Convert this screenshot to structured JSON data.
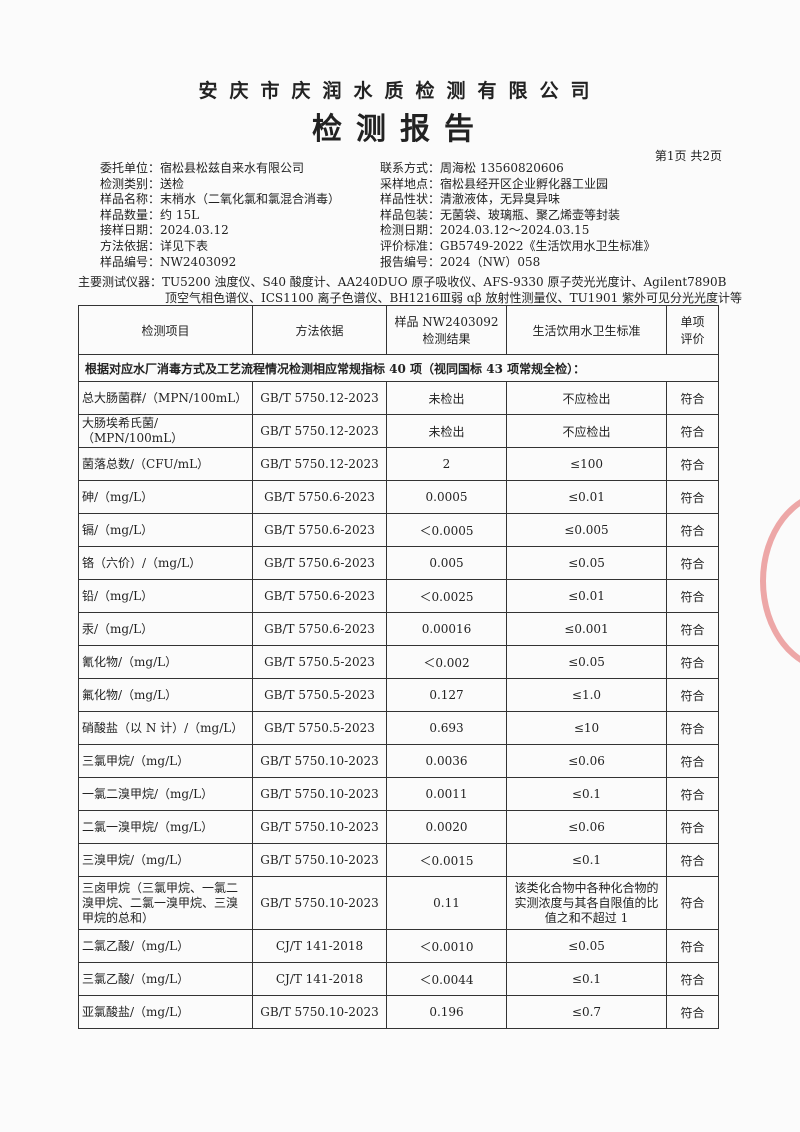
{
  "header": {
    "company": "安庆市庆润水质检测有限公司",
    "title": "检测报告",
    "page": "第1页 共2页"
  },
  "info": {
    "left": [
      "委托单位：宿松县松兹自来水有限公司",
      "检测类别：送检",
      "样品名称：末梢水（二氧化氯和氯混合消毒）",
      "样品数量：约 15L",
      "接样日期：2024.03.12",
      "方法依据：详见下表",
      "样品编号：NW2403092"
    ],
    "right": [
      "联系方式：周海松 13560820606",
      "采样地点：宿松县经开区企业孵化器工业园",
      "样品性状：清澈液体，无异臭异味",
      "样品包装：无菌袋、玻璃瓶、聚乙烯壶等封装",
      "检测日期：2024.03.12～2024.03.15",
      "评价标准：GB5749-2022《生活饮用水卫生标准》",
      "报告编号：2024（NW）058"
    ]
  },
  "instruments": [
    "主要测试仪器：TU5200 浊度仪、S40 酸度计、AA240DUO 原子吸收仪、AFS-9330 原子荧光光度计、Agilent7890B",
    "顶空气相色谱仪、ICS1100 离子色谱仪、BH1216Ⅲ弱 αβ 放射性测量仪、TU1901 紫外可见分光光度计等"
  ],
  "table": {
    "headers": [
      [
        "检测项目"
      ],
      [
        "方法依据"
      ],
      [
        "样品 NW2403092",
        "检测结果"
      ],
      [
        "生活饮用水卫生标准"
      ],
      [
        "单项",
        "评价"
      ]
    ],
    "section": "根据对应水厂消毒方式及工艺流程情况检测相应常规指标 40 项（视同国标 43 项常规全检）：",
    "rows": [
      [
        "总大肠菌群/（MPN/100mL）",
        "GB/T 5750.12-2023",
        "未检出",
        "不应检出",
        "符合"
      ],
      [
        "大肠埃希氏菌/（MPN/100mL）",
        "GB/T 5750.12-2023",
        "未检出",
        "不应检出",
        "符合"
      ],
      [
        "菌落总数/（CFU/mL）",
        "GB/T 5750.12-2023",
        "2",
        "≤100",
        "符合"
      ],
      [
        "砷/（mg/L）",
        "GB/T 5750.6-2023",
        "0.0005",
        "≤0.01",
        "符合"
      ],
      [
        "镉/（mg/L）",
        "GB/T 5750.6-2023",
        "＜0.0005",
        "≤0.005",
        "符合"
      ],
      [
        "铬（六价）/（mg/L）",
        "GB/T 5750.6-2023",
        "0.005",
        "≤0.05",
        "符合"
      ],
      [
        "铅/（mg/L）",
        "GB/T 5750.6-2023",
        "＜0.0025",
        "≤0.01",
        "符合"
      ],
      [
        "汞/（mg/L）",
        "GB/T 5750.6-2023",
        "0.00016",
        "≤0.001",
        "符合"
      ],
      [
        "氰化物/（mg/L）",
        "GB/T 5750.5-2023",
        "＜0.002",
        "≤0.05",
        "符合"
      ],
      [
        "氟化物/（mg/L）",
        "GB/T 5750.5-2023",
        "0.127",
        "≤1.0",
        "符合"
      ],
      [
        "硝酸盐（以 N 计）/（mg/L）",
        "GB/T 5750.5-2023",
        "0.693",
        "≤10",
        "符合"
      ],
      [
        "三氯甲烷/（mg/L）",
        "GB/T 5750.10-2023",
        "0.0036",
        "≤0.06",
        "符合"
      ],
      [
        "一氯二溴甲烷/（mg/L）",
        "GB/T 5750.10-2023",
        "0.0011",
        "≤0.1",
        "符合"
      ],
      [
        "二氯一溴甲烷/（mg/L）",
        "GB/T 5750.10-2023",
        "0.0020",
        "≤0.06",
        "符合"
      ],
      [
        "三溴甲烷/（mg/L）",
        "GB/T 5750.10-2023",
        "＜0.0015",
        "≤0.1",
        "符合"
      ],
      [
        "三卤甲烷（三氯甲烷、一氯二溴甲烷、二氯一溴甲烷、三溴甲烷的总和）",
        "GB/T 5750.10-2023",
        "0.11",
        "该类化合物中各种化合物的实测浓度与其各自限值的比值之和不超过 1",
        "符合"
      ],
      [
        "二氯乙酸/（mg/L）",
        "CJ/T 141-2018",
        "＜0.0010",
        "≤0.05",
        "符合"
      ],
      [
        "三氯乙酸/（mg/L）",
        "CJ/T 141-2018",
        "＜0.0044",
        "≤0.1",
        "符合"
      ],
      [
        "亚氯酸盐/（mg/L）",
        "GB/T 5750.10-2023",
        "0.196",
        "≤0.7",
        "符合"
      ]
    ]
  }
}
